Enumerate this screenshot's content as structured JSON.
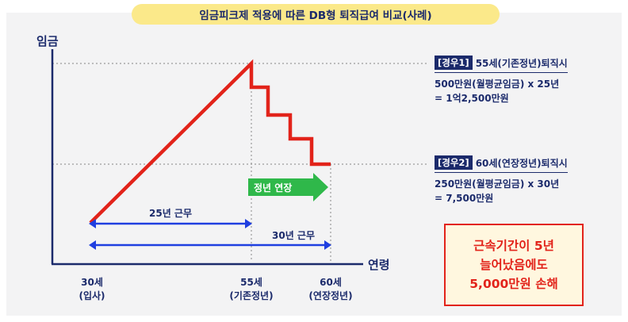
{
  "title": "임금피크제 적용에 따른 DB형 퇴직급여 비교(사례)",
  "axis": {
    "y_label": "임금",
    "x_label": "연령"
  },
  "x_ticks": [
    {
      "age": "30세",
      "note": "(입사)"
    },
    {
      "age": "55세",
      "note": "(기존정년)"
    },
    {
      "age": "60세",
      "note": "(연장정년)"
    }
  ],
  "spans": {
    "span_25": "25년 근무",
    "span_30": "30년 근무"
  },
  "extension_label": "정년 연장",
  "case1": {
    "tag": "[경우1]",
    "title": "55세(기존정년)퇴직시",
    "line1": "500만원(월평균임금) x 25년",
    "line2": "= 1억2,500만원"
  },
  "case2": {
    "tag": "[경우2]",
    "title": "60세(연장정년)퇴직시",
    "line1": "250만원(월평균임금) x 30년",
    "line2": "= 7,500만원"
  },
  "loss": {
    "line1": "근속기간이 5년",
    "line2": "늘어났음에도",
    "line3": "5,000만원 손해"
  },
  "colors": {
    "navy": "#1b2a6b",
    "red": "#e2231a",
    "blue": "#1f3fe0",
    "green": "#2fb84a",
    "pill": "#fbe98a"
  }
}
